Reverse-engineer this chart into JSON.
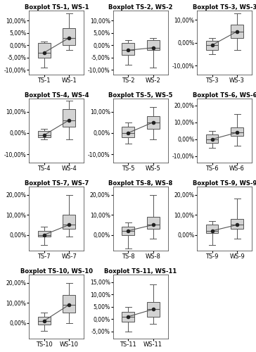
{
  "plots": [
    {
      "title": "Boxplot TS-1, WS-1",
      "labels": [
        "TS-1",
        "WS-1"
      ],
      "ylim": [
        -12,
        14
      ],
      "yticks": [
        -10,
        -5,
        0,
        5,
        10
      ],
      "yticklabels": [
        "-10,00%",
        "-5,00%",
        "0,00%",
        "5,00%",
        "10,00%"
      ],
      "ts": {
        "q1": -5,
        "median": -3,
        "q3": 1,
        "whislo": -9,
        "whishi": 1.5,
        "mean": -3
      },
      "ws": {
        "q1": 0,
        "median": 3,
        "q3": 7,
        "whislo": -2,
        "whishi": 13,
        "mean": 3
      }
    },
    {
      "title": "Boxplot TS-2, WS-2",
      "labels": [
        "TS-2",
        "WS-2"
      ],
      "ylim": [
        -12,
        14
      ],
      "yticks": [
        -10,
        -5,
        0,
        5,
        10
      ],
      "yticklabels": [
        "-10,00%",
        "-5,00%",
        "0,00%",
        "5,00%",
        "10,00%"
      ],
      "ts": {
        "q1": -4,
        "median": -2,
        "q3": 1,
        "whislo": -8,
        "whishi": 2,
        "mean": -2
      },
      "ws": {
        "q1": -2,
        "median": -1,
        "q3": 2,
        "whislo": -9,
        "whishi": 3,
        "mean": -1
      }
    },
    {
      "title": "Boxplot TS-3, WS-3",
      "labels": [
        "TS-3",
        "WS-3"
      ],
      "ylim": [
        -14,
        14
      ],
      "yticks": [
        -10,
        0,
        10
      ],
      "yticklabels": [
        "-10,00%",
        "0,00%",
        "10,00%"
      ],
      "ts": {
        "q1": -3,
        "median": -1,
        "q3": 1,
        "whislo": -5,
        "whishi": 2,
        "mean": -1
      },
      "ws": {
        "q1": 2,
        "median": 5,
        "q3": 8,
        "whislo": -3,
        "whishi": 13,
        "mean": 5
      }
    },
    {
      "title": "Boxplot TS-4, WS-4",
      "labels": [
        "TS-4",
        "WS-4"
      ],
      "ylim": [
        -14,
        16
      ],
      "yticks": [
        -10,
        0,
        10
      ],
      "yticklabels": [
        "-10,00%",
        "0,00%",
        "10,00%"
      ],
      "ts": {
        "q1": -2,
        "median": -1,
        "q3": 1,
        "whislo": -3,
        "whishi": 2,
        "mean": -1
      },
      "ws": {
        "q1": 3,
        "median": 6,
        "q3": 11,
        "whislo": -3,
        "whishi": 15,
        "mean": 6
      }
    },
    {
      "title": "Boxplot TS-5, WS-5",
      "labels": [
        "TS-5",
        "WS-5"
      ],
      "ylim": [
        -14,
        16
      ],
      "yticks": [
        -10,
        0,
        10
      ],
      "yticklabels": [
        "-10,00%",
        "0,00%",
        "10,00%"
      ],
      "ts": {
        "q1": -2,
        "median": 0,
        "q3": 3,
        "whislo": -5,
        "whishi": 5,
        "mean": 0
      },
      "ws": {
        "q1": 2,
        "median": 5,
        "q3": 8,
        "whislo": -3,
        "whishi": 12,
        "mean": 5
      }
    },
    {
      "title": "Boxplot TS-6, WS-6",
      "labels": [
        "TS-6",
        "WS-6"
      ],
      "ylim": [
        -14,
        24
      ],
      "yticks": [
        -10,
        0,
        10,
        20
      ],
      "yticklabels": [
        "-10,00%",
        "0,00%",
        "10,00%",
        "20,00%"
      ],
      "ts": {
        "q1": -2,
        "median": 0,
        "q3": 3,
        "whislo": -5,
        "whishi": 5,
        "mean": 0
      },
      "ws": {
        "q1": 2,
        "median": 4,
        "q3": 7,
        "whislo": -4,
        "whishi": 15,
        "mean": 4
      }
    },
    {
      "title": "Boxplot TS-7, WS-7",
      "labels": [
        "TS-7",
        "WS-7"
      ],
      "ylim": [
        -8,
        24
      ],
      "yticks": [
        0,
        10,
        20
      ],
      "yticklabels": [
        "0,00%",
        "10,00%",
        "20,00%"
      ],
      "ts": {
        "q1": -1,
        "median": 0,
        "q3": 2,
        "whislo": -5,
        "whishi": 4,
        "mean": 0
      },
      "ws": {
        "q1": 3,
        "median": 5,
        "q3": 10,
        "whislo": -1,
        "whishi": 20,
        "mean": 5
      }
    },
    {
      "title": "Boxplot TS-8, WS-8",
      "labels": [
        "TS-8",
        "WS-8"
      ],
      "ylim": [
        -8,
        24
      ],
      "yticks": [
        0,
        10,
        20
      ],
      "yticklabels": [
        "0,00%",
        "10,00%",
        "20,00%"
      ],
      "ts": {
        "q1": 0,
        "median": 2,
        "q3": 4,
        "whislo": -7,
        "whishi": 6,
        "mean": 2
      },
      "ws": {
        "q1": 3,
        "median": 5,
        "q3": 9,
        "whislo": -2,
        "whishi": 20,
        "mean": 5
      }
    },
    {
      "title": "Boxplot TS-9, WS-9",
      "labels": [
        "TS-9",
        "WS-9"
      ],
      "ylim": [
        -8,
        24
      ],
      "yticks": [
        0,
        10,
        20
      ],
      "yticklabels": [
        "0,00%",
        "10,00%",
        "20,00%"
      ],
      "ts": {
        "q1": 1,
        "median": 2,
        "q3": 5,
        "whislo": -5,
        "whishi": 7,
        "mean": 2
      },
      "ws": {
        "q1": 3,
        "median": 5,
        "q3": 8,
        "whislo": -2,
        "whishi": 18,
        "mean": 5
      }
    },
    {
      "title": "Boxplot TS-10, WS-10",
      "labels": [
        "TS-10",
        "WS-10"
      ],
      "ylim": [
        -8,
        24
      ],
      "yticks": [
        0,
        10,
        20
      ],
      "yticklabels": [
        "0,00%",
        "10,00%",
        "20,00%"
      ],
      "ts": {
        "q1": -1,
        "median": 1,
        "q3": 3,
        "whislo": -4,
        "whishi": 5,
        "mean": 1
      },
      "ws": {
        "q1": 5,
        "median": 9,
        "q3": 14,
        "whislo": 0,
        "whishi": 20,
        "mean": 9
      }
    },
    {
      "title": "Boxplot TS-11, WS-11",
      "labels": [
        "TS-11",
        "WS-11"
      ],
      "ylim": [
        -8,
        18
      ],
      "yticks": [
        -5,
        0,
        5,
        10,
        15
      ],
      "yticklabels": [
        "-5,00%",
        "0,00%",
        "5,00%",
        "10,00%",
        "15,00%"
      ],
      "ts": {
        "q1": -1,
        "median": 1,
        "q3": 3,
        "whislo": -5,
        "whishi": 5,
        "mean": 1
      },
      "ws": {
        "q1": 1,
        "median": 4,
        "q3": 7,
        "whislo": -2,
        "whishi": 14,
        "mean": 4
      }
    }
  ],
  "box_color": "#d3d3d3",
  "box_edgecolor": "#555555",
  "mean_color": "#222222",
  "line_color": "#555555",
  "title_fontsize": 6,
  "tick_fontsize": 5.5,
  "label_fontsize": 6,
  "bg_color": "#ffffff"
}
